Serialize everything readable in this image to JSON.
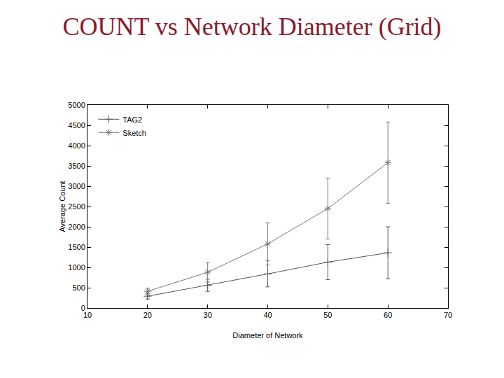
{
  "chart_data": {
    "type": "line",
    "title": "COUNT vs Network Diameter (Grid)",
    "x_label": "Diameter of Network",
    "y_label": "Average Count",
    "x": [
      20,
      30,
      40,
      50,
      60
    ],
    "series": [
      {
        "name": "TAG2",
        "color": "#555555",
        "marker": "plus",
        "line_style": "solid",
        "values": [
          290,
          560,
          840,
          1130,
          1360
        ],
        "errors": [
          70,
          150,
          320,
          430,
          640
        ]
      },
      {
        "name": "Sketch",
        "color": "#777777",
        "marker": "asterisk",
        "line_style": "solid",
        "values": [
          410,
          880,
          1580,
          2450,
          3580
        ],
        "errors": [
          80,
          240,
          520,
          750,
          1000
        ]
      }
    ],
    "xlim": [
      10,
      70
    ],
    "xticks": [
      10,
      20,
      30,
      40,
      50,
      60,
      70
    ],
    "ylim": [
      0,
      5000
    ],
    "yticks": [
      0,
      500,
      1000,
      1500,
      2000,
      2500,
      3000,
      3500,
      4000,
      4500,
      5000
    ],
    "grid": false,
    "legend": "top-left"
  }
}
